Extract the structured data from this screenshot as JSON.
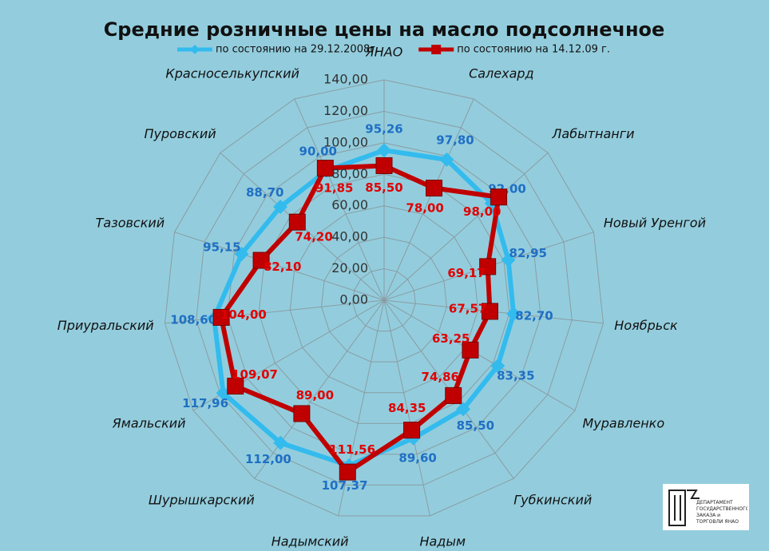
{
  "chart_data": {
    "type": "radar",
    "title": "Средние розничные цены на масло подсолнечное",
    "categories": [
      "ЯНАО",
      "Салехард",
      "Лабытнанги",
      "Новый Уренгой",
      "Ноябрьск",
      "Муравленко",
      "Губкинский",
      "Надым",
      "Надымский",
      "Шурышкарский",
      "Ямальский",
      "Приуральский",
      "Тазовский",
      "Пуровский",
      "Красноселькупский"
    ],
    "series": [
      {
        "name": "по состоянию на 29.12.2008г.",
        "color": "#33bbee",
        "marker": "diamond",
        "values": [
          95.26,
          97.8,
          92.0,
          82.95,
          82.7,
          83.35,
          85.5,
          89.6,
          107.37,
          112.0,
          117.96,
          108.6,
          95.15,
          88.7,
          90.0
        ],
        "value_labels": [
          "95,26",
          "97,80",
          "92,00",
          "82,95",
          "82,70",
          "83,35",
          "85,50",
          "89,60",
          "107,37",
          "112,00",
          "117,96",
          "108,60",
          "95,15",
          "88,70",
          "90,00"
        ],
        "label_color": "#1f6fc4"
      },
      {
        "name": "по состоянию на 14.12.09 г.",
        "color": "#c00000",
        "marker": "square",
        "values": [
          85.5,
          78.0,
          98.0,
          69.17,
          67.57,
          63.25,
          74.86,
          84.35,
          111.56,
          89.0,
          109.07,
          104.0,
          82.1,
          74.2,
          91.85
        ],
        "value_labels": [
          "85,50",
          "78,00",
          "98,00",
          "69,17",
          "67,57",
          "63,25",
          "74,86",
          "84,35",
          "111,56",
          "89,00",
          "109,07",
          "104,00",
          "82,10",
          "74,20",
          "91,85"
        ],
        "label_color": "#e00000"
      }
    ],
    "ylim": [
      0,
      140
    ],
    "yticks": [
      {
        "value": 0,
        "label": "0,00"
      },
      {
        "value": 20,
        "label": "20,00"
      },
      {
        "value": 40,
        "label": "40,00"
      },
      {
        "value": 60,
        "label": "60,00"
      },
      {
        "value": 80,
        "label": "80,00"
      },
      {
        "value": 100,
        "label": "100,00"
      },
      {
        "value": 120,
        "label": "120,00"
      },
      {
        "value": 140,
        "label": "140,00"
      }
    ],
    "grid": true,
    "legend": "top"
  },
  "logo": {
    "text": "ДЕПАРТАМЕНТ ГОСУДАРСТВЕННОГО ЗАКАЗА и ТОРГОВЛИ ЯНАО"
  }
}
